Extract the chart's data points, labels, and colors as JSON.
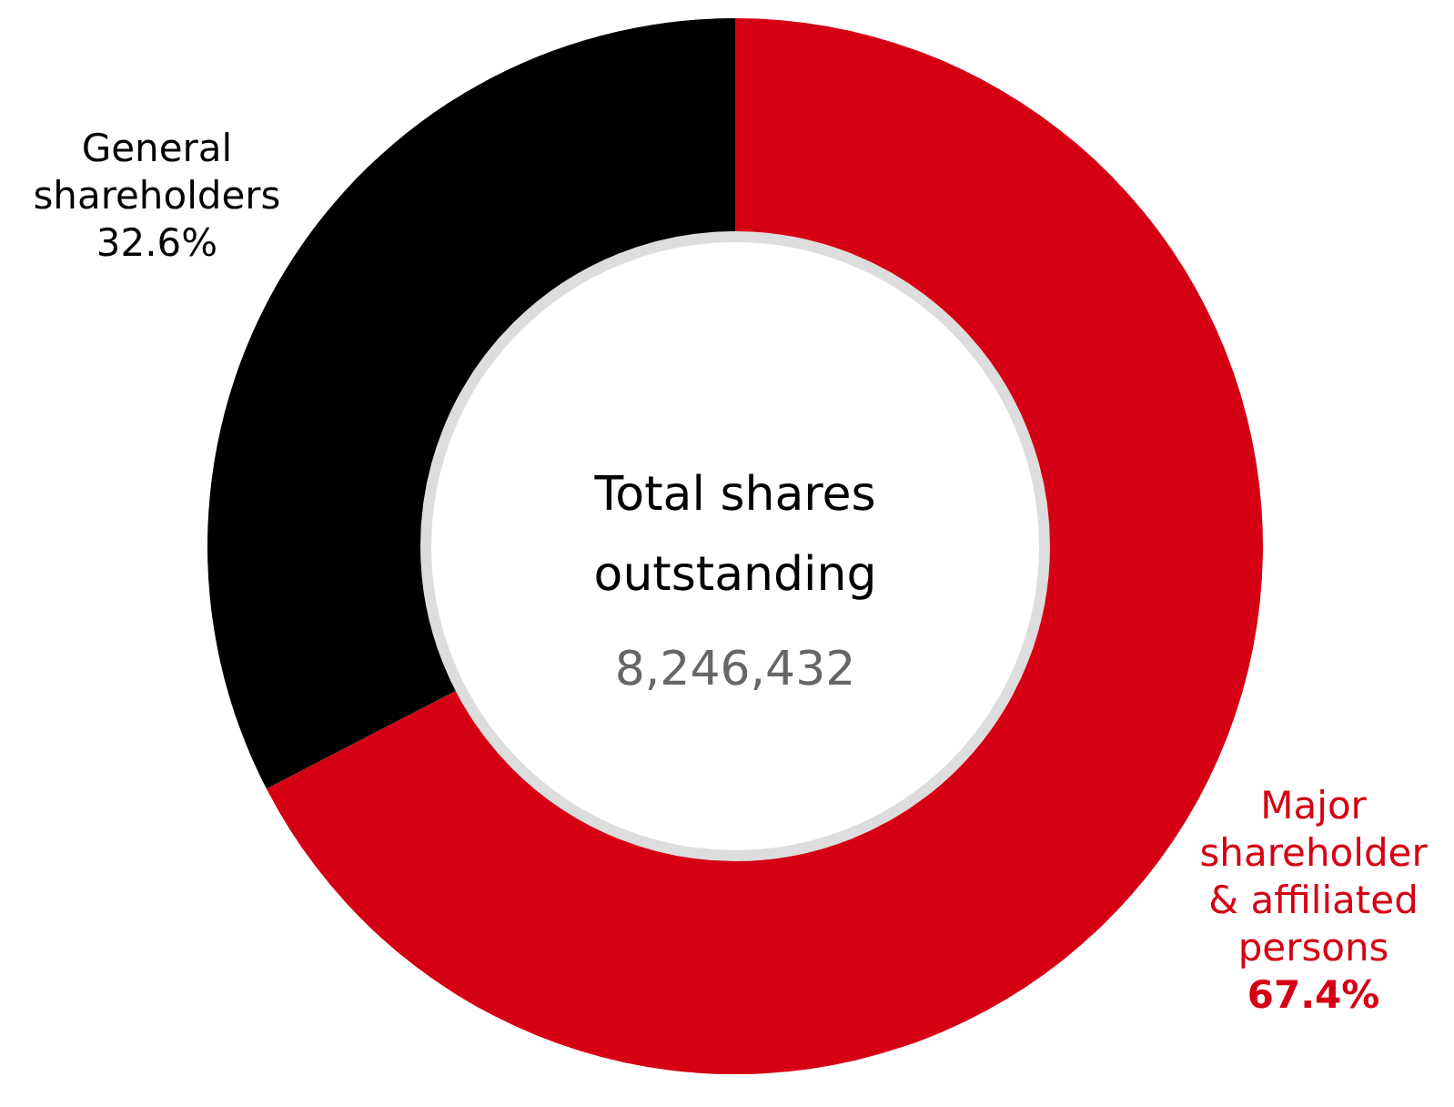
{
  "chart_data": {
    "type": "donut",
    "categories": [
      "Major shareholder & affiliated persons",
      "General shareholders"
    ],
    "values": [
      67.4,
      32.6
    ],
    "value_labels": [
      "67.4%",
      "32.6%"
    ],
    "colors": [
      "#d50014",
      "#000000"
    ],
    "annotations": [
      "Total shares outstanding",
      "8,246,432"
    ]
  }
}
